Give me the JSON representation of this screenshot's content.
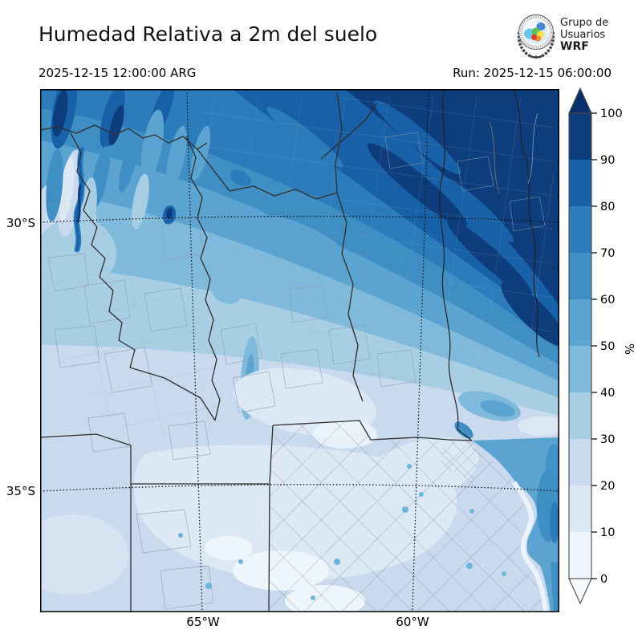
{
  "header": {
    "title": "Humedad Relativa a 2m del suelo",
    "valid_time": "2025-12-15 12:00:00 ARG",
    "run_label": "Run: 2025-12-15 06:00:00",
    "logo": {
      "line1": "Grupo de",
      "line2": "Usuarios",
      "line3": "WRF"
    }
  },
  "map": {
    "lat_labels": [
      "30°S",
      "35°S"
    ],
    "lon_labels": [
      "65°W",
      "60°W"
    ]
  },
  "colorbar": {
    "unit": "%",
    "ticks": [
      0,
      10,
      20,
      30,
      40,
      50,
      60,
      70,
      80,
      90,
      100
    ],
    "colors": [
      "#f0f6fc",
      "#dce8f4",
      "#c9daee",
      "#a8cee4",
      "#7fbadc",
      "#5ba3d0",
      "#3f8fc5",
      "#2c7cbb",
      "#1861a8",
      "#0d3d7d"
    ],
    "over_color": "#08306b",
    "under_color": "#f7fbff"
  },
  "chart_data": {
    "type": "filled_contour_map",
    "title": "Humedad Relativa a 2m del suelo",
    "valid_time": "2025-12-15 12:00:00 ARG",
    "model_run": "2025-12-15 06:00:00",
    "unit": "%",
    "contour_levels": [
      0,
      10,
      20,
      30,
      40,
      50,
      60,
      70,
      80,
      90,
      100
    ],
    "palette": [
      "#f0f6fc",
      "#dce8f4",
      "#c9daee",
      "#a8cee4",
      "#7fbadc",
      "#5ba3d0",
      "#3f8fc5",
      "#2c7cbb",
      "#1861a8",
      "#0d3d7d"
    ],
    "colorbar_extend": "both",
    "graticule": {
      "parallels": [
        "30°S",
        "35°S"
      ],
      "meridians": [
        "65°W",
        "60°W"
      ]
    },
    "pattern_summary": "Relative humidity 80-100% over the northeast corner in diagonal bands, decreasing toward the southwest to 10-30% over the central and southern plains; streaky 40-90% values over the Andean northwest; 50-70% over the Rio de la Plata and Atlantic in the southeast corner."
  }
}
